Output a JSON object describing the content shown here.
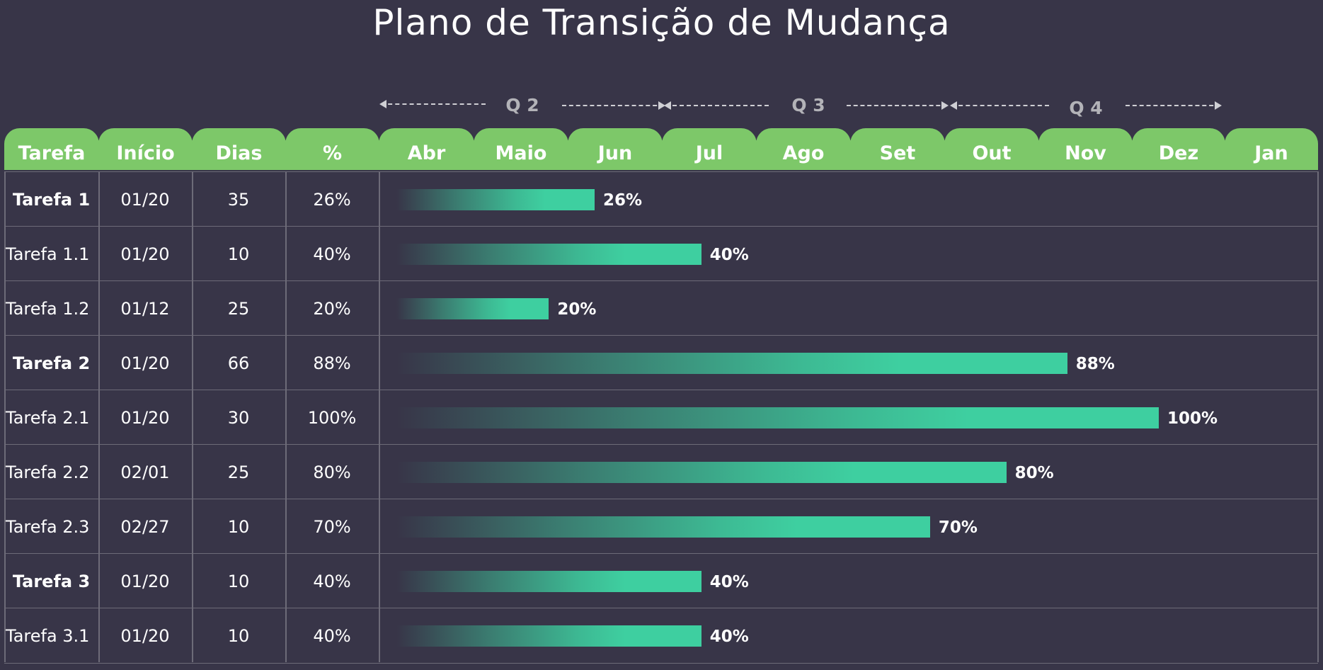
{
  "title": "Plano de Transição de Mudança",
  "quarters": [
    "Q 2",
    "Q 3",
    "Q 4"
  ],
  "columns": [
    "Tarefa",
    "Início",
    "Dias",
    "%"
  ],
  "months": [
    "Abr",
    "Maio",
    "Jun",
    "Jul",
    "Ago",
    "Set",
    "Out",
    "Nov",
    "Dez",
    "Jan"
  ],
  "colors": {
    "background": "#383548",
    "header_tab": "#7dc869",
    "bar": "#3ecfa0",
    "grid_line": "#6d6b78",
    "quarter_text": "#b3b3b8"
  },
  "chart_data": {
    "type": "table",
    "title": "Plano de Transição de Mudança",
    "rows": [
      {
        "task": "Tarefa 1",
        "start": "01/20",
        "days": "35",
        "pct_text": "26%",
        "pct": 26,
        "bold": true
      },
      {
        "task": "Tarefa 1.1",
        "start": "01/20",
        "days": "10",
        "pct_text": "40%",
        "pct": 40,
        "bold": false
      },
      {
        "task": "Tarefa 1.2",
        "start": "01/12",
        "days": "25",
        "pct_text": "20%",
        "pct": 20,
        "bold": false
      },
      {
        "task": "Tarefa 2",
        "start": "01/20",
        "days": "66",
        "pct_text": "88%",
        "pct": 88,
        "bold": true
      },
      {
        "task": "Tarefa 2.1",
        "start": "01/20",
        "days": "30",
        "pct_text": "100%",
        "pct": 100,
        "bold": false
      },
      {
        "task": "Tarefa 2.2",
        "start": "02/01",
        "days": "25",
        "pct_text": "80%",
        "pct": 80,
        "bold": false
      },
      {
        "task": "Tarefa 2.3",
        "start": "02/27",
        "days": "10",
        "pct_text": "70%",
        "pct": 70,
        "bold": false
      },
      {
        "task": "Tarefa 3",
        "start": "01/20",
        "days": "10",
        "pct_text": "40%",
        "pct": 40,
        "bold": true
      },
      {
        "task": "Tarefa 3.1",
        "start": "01/20",
        "days": "10",
        "pct_text": "40%",
        "pct": 40,
        "bold": false
      }
    ]
  }
}
